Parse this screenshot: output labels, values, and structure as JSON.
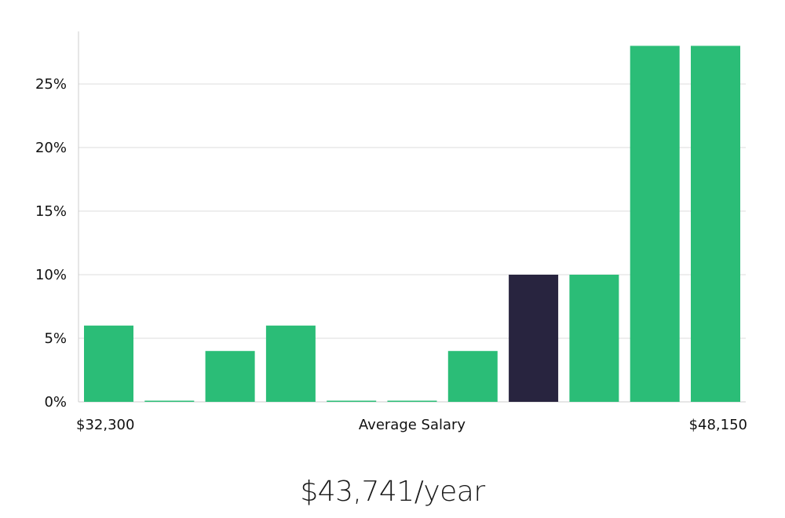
{
  "chart_data": {
    "type": "bar",
    "title": "",
    "xlabel": "Average Salary",
    "ylabel": "",
    "x_range_labels": {
      "min": "$32,300",
      "max": "$48,150"
    },
    "values": [
      6,
      0,
      4,
      6,
      0,
      0,
      4,
      10,
      10,
      28,
      28
    ],
    "highlight_index": 7,
    "ylim": [
      0,
      29
    ],
    "yticks": [
      0,
      5,
      10,
      15,
      20,
      25
    ],
    "ytick_labels": [
      "0%",
      "5%",
      "10%",
      "15%",
      "20%",
      "25%"
    ],
    "grid": true,
    "colors": {
      "bar": "#2bbd77",
      "highlight": "#28243f",
      "grid": "#dddddd",
      "axis": "#cccccc"
    }
  },
  "salary_summary": "$43,741/year"
}
